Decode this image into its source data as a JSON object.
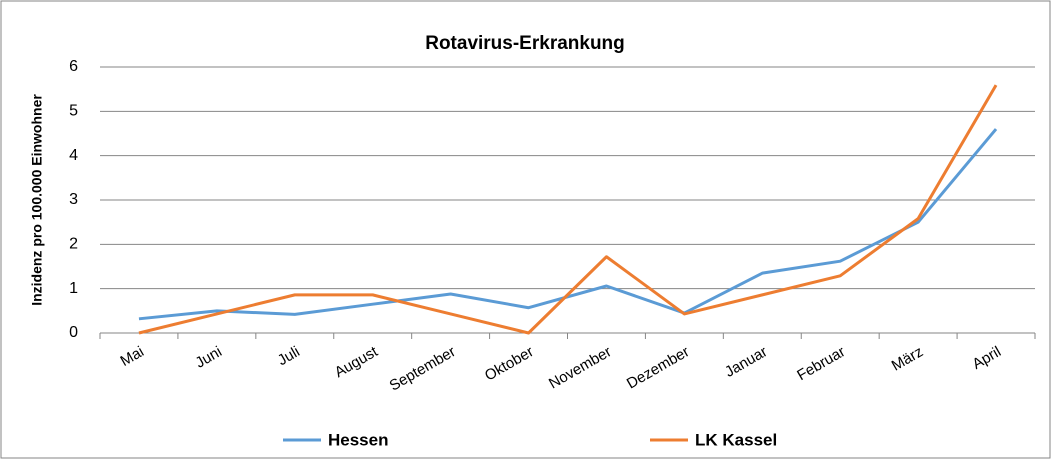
{
  "chart_data": {
    "type": "line",
    "title": "Rotavirus-Erkrankung",
    "y_label": "Inzidenz pro 100.000 Einwohner",
    "categories": [
      "Mai",
      "Juni",
      "Juli",
      "August",
      "September",
      "Oktober",
      "November",
      "Dezember",
      "Januar",
      "Februar",
      "März",
      "April"
    ],
    "series": [
      {
        "name": "Hessen",
        "color": "#5b9bd5",
        "values": [
          0.32,
          0.5,
          0.42,
          0.65,
          0.88,
          0.57,
          1.06,
          0.45,
          1.35,
          1.62,
          2.5,
          4.6
        ]
      },
      {
        "name": "LK Kassel",
        "color": "#ed7d31",
        "values": [
          0,
          0.43,
          0.86,
          0.86,
          0.43,
          0,
          1.72,
          0.43,
          0.86,
          1.29,
          2.58,
          5.59
        ]
      }
    ],
    "ylim": [
      0,
      6
    ],
    "yticks": [
      0,
      1,
      2,
      3,
      4,
      5,
      6
    ],
    "grid": true,
    "legend": "bottom"
  }
}
